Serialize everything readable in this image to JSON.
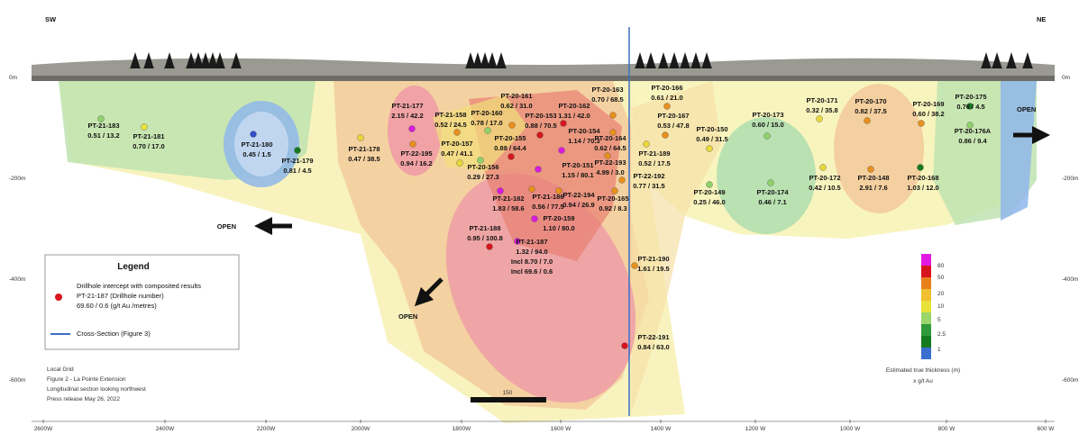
{
  "header": {
    "left": "SW",
    "right": "NE"
  },
  "open_labels": [
    "OPEN",
    "OPEN",
    "OPEN"
  ],
  "drillholes": [
    {
      "id": "PT-21-183",
      "lines": [
        "0.51 / 13.2"
      ],
      "color": "#8fd16a"
    },
    {
      "id": "PT-21-181",
      "lines": [
        "0.70 / 17.0"
      ],
      "color": "#e8e23a"
    },
    {
      "id": "PT-21-180",
      "lines": [
        "0.45 / 1.5"
      ],
      "color": "#3050c8"
    },
    {
      "id": "PT-21-179",
      "lines": [
        "0.81 / 4.5"
      ],
      "color": "#137a1e"
    },
    {
      "id": "PT-21-178",
      "lines": [
        "0.47 / 38.5"
      ],
      "color": "#e8d83a"
    },
    {
      "id": "PT-21-177",
      "lines": [
        "2.15 / 42.2"
      ],
      "color": "#d81adc"
    },
    {
      "id": "PT-22-195",
      "lines": [
        "0.94 / 16.2"
      ],
      "color": "#e8901c"
    },
    {
      "id": "PT-21-158",
      "lines": [
        "0.52 / 24.5"
      ],
      "color": "#e8901c"
    },
    {
      "id": "PT-20-160",
      "lines": [
        "0.78 / 17.0"
      ],
      "color": "#8fd16a"
    },
    {
      "id": "PT-20-161",
      "lines": [
        "0.62 / 31.0"
      ],
      "color": "#e8901c"
    },
    {
      "id": "PT-20-157",
      "lines": [
        "0.47 / 41.1"
      ],
      "color": "#e8d83a"
    },
    {
      "id": "PT-20-155",
      "lines": [
        "0.88 / 64.4"
      ],
      "color": "#d8141c"
    },
    {
      "id": "PT-20-153",
      "lines": [
        "0.88 / 70.5"
      ],
      "color": "#d8141c"
    },
    {
      "id": "PT-20-162",
      "lines": [
        "1.31 / 42.0"
      ],
      "color": "#d8141c"
    },
    {
      "id": "PT-20-154",
      "lines": [
        "1.14 / 70.3"
      ],
      "color": "#d81adc"
    },
    {
      "id": "PT-20-156",
      "lines": [
        "0.29 / 27.3"
      ],
      "color": "#8fd16a"
    },
    {
      "id": "PT-20-151",
      "lines": [
        "1.15 / 80.1"
      ],
      "color": "#d81adc"
    },
    {
      "id": "PT-20-163",
      "lines": [
        "0.70 / 68.5"
      ],
      "color": "#e8901c"
    },
    {
      "id": "PT-20-164",
      "lines": [
        "0.62 / 64.5"
      ],
      "color": "#e8901c"
    },
    {
      "id": "PT-22-193",
      "lines": [
        "4.99 / 3.0"
      ],
      "color": "#e8901c"
    },
    {
      "id": "PT-20-166",
      "lines": [
        "0.61 / 21.0"
      ],
      "color": "#e8901c"
    },
    {
      "id": "PT-20-167",
      "lines": [
        "0.53 / 47.8"
      ],
      "color": "#e8901c"
    },
    {
      "id": "PT-21-189",
      "lines": [
        "0.52 / 17.5"
      ],
      "color": "#e8d83a"
    },
    {
      "id": "PT-22-192",
      "lines": [
        "0.77 / 31.5"
      ],
      "color": "#e8901c"
    },
    {
      "id": "PT-20-165",
      "lines": [
        "0.92 / 8.3"
      ],
      "color": "#e8901c"
    },
    {
      "id": "PT-21-182",
      "lines": [
        "1.83 / 58.6"
      ],
      "color": "#d81adc"
    },
    {
      "id": "PT-21-186",
      "lines": [
        "0.56 / 77.5"
      ],
      "color": "#e8901c"
    },
    {
      "id": "PT-22-194",
      "lines": [
        "0.94 / 26.9"
      ],
      "color": "#e8901c"
    },
    {
      "id": "PT-20-159",
      "lines": [
        "1.10 / 80.0"
      ],
      "color": "#d81adc"
    },
    {
      "id": "PT-21-188",
      "lines": [
        "0.95 / 100.8"
      ],
      "color": "#d8141c"
    },
    {
      "id": "PT-21-187",
      "lines": [
        "1.32 / 94.0",
        "Incl 8.70 / 7.0",
        "Incl 69.6 / 0.6"
      ],
      "color": "#d81adc"
    },
    {
      "id": "PT-21-190",
      "lines": [
        "1.61 / 19.5"
      ],
      "color": "#e8901c"
    },
    {
      "id": "PT-22-191",
      "lines": [
        "0.84 / 63.0"
      ],
      "color": "#d8141c"
    },
    {
      "id": "PT-20-150",
      "lines": [
        "0.49 / 31.5"
      ],
      "color": "#e8d83a"
    },
    {
      "id": "PT-20-149",
      "lines": [
        "0.25 / 46.0"
      ],
      "color": "#8fd16a"
    },
    {
      "id": "PT-20-173",
      "lines": [
        "0.60 / 15.0"
      ],
      "color": "#8fd16a"
    },
    {
      "id": "PT-20-174",
      "lines": [
        "0.46 / 7.1"
      ],
      "color": "#8fd16a"
    },
    {
      "id": "PT-20-171",
      "lines": [
        "0.32 / 35.8"
      ],
      "color": "#e8d83a"
    },
    {
      "id": "PT-20-172",
      "lines": [
        "0.42 / 10.5"
      ],
      "color": "#e8d83a"
    },
    {
      "id": "PT-20-170",
      "lines": [
        "0.82 / 37.5"
      ],
      "color": "#e8901c"
    },
    {
      "id": "PT-20-148",
      "lines": [
        "2.91 / 7.6"
      ],
      "color": "#e8901c"
    },
    {
      "id": "PT-20-169",
      "lines": [
        "0.60 / 38.2"
      ],
      "color": "#e8901c"
    },
    {
      "id": "PT-20-168",
      "lines": [
        "1.03 / 12.0"
      ],
      "color": "#137a1e"
    },
    {
      "id": "PT-20-175",
      "lines": [
        "0.76 / 4.5"
      ],
      "color": "#137a1e"
    },
    {
      "id": "PT-20-176A",
      "lines": [
        "0.86 / 9.4"
      ],
      "color": "#8fd16a"
    }
  ],
  "axis": {
    "x_labels": [
      "2600W",
      "2400W",
      "2200W",
      "2000W",
      "1800W",
      "1600 W",
      "1400 W",
      "1200 W",
      "1000 W",
      "800 W",
      "600 W"
    ],
    "y_left": [
      "0m",
      "-200m",
      "-400m",
      "-600m"
    ],
    "y_right": [
      "0m",
      "-200m",
      "-400m",
      "-600m"
    ]
  },
  "scale_bar": "150",
  "legend": {
    "title": "Legend",
    "item_lines": [
      "Drillhole intercept with composited results",
      "PT-21-187 (Drillhole number)",
      "69.60 / 0.6 (g/t Au /metres)"
    ],
    "cross_section": "Cross-Section (Figure 3)"
  },
  "color_scale": {
    "labels": [
      80,
      50,
      20,
      10,
      5,
      2.5,
      1
    ],
    "caption": [
      "Estimated true thickness (m)",
      "x g/t Au"
    ]
  },
  "notes": [
    "Local Grid",
    "Figure 2 - La Pointe Extension",
    "Longitudinal section looking northwest",
    "Press release May 26, 2022"
  ]
}
